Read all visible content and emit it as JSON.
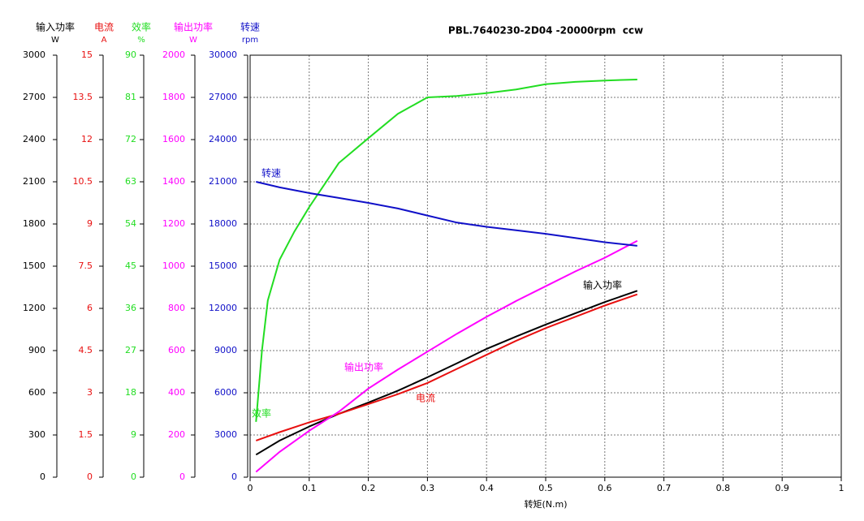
{
  "chart_data": {
    "type": "line",
    "title": "PBL.7640230-2D04 -20000rpm  ccw",
    "x_label": "转矩(N.m)",
    "xlim": [
      0,
      1
    ],
    "xticks": [
      0,
      0.1,
      0.2,
      0.3,
      0.4,
      0.5,
      0.6,
      0.7,
      0.8,
      0.9,
      1
    ],
    "grid": true,
    "axes": [
      {
        "name": "输入功率",
        "unit": "W",
        "color": "#000000",
        "ylim": [
          0,
          3000
        ],
        "yticks": [
          0,
          300,
          600,
          900,
          1200,
          1500,
          1800,
          2100,
          2400,
          2700,
          3000
        ]
      },
      {
        "name": "电流",
        "unit": "A",
        "color": "#e81010",
        "ylim": [
          0,
          15
        ],
        "yticks": [
          0,
          1.5,
          3,
          4.5,
          6,
          7.5,
          9,
          10.5,
          12,
          13.5,
          15
        ]
      },
      {
        "name": "效率",
        "unit": "%",
        "color": "#22dd22",
        "ylim": [
          0,
          90
        ],
        "yticks": [
          0,
          9,
          18,
          27,
          36,
          45,
          54,
          63,
          72,
          81,
          90
        ]
      },
      {
        "name": "输出功率",
        "unit": "W",
        "color": "#ff00ff",
        "ylim": [
          0,
          2000
        ],
        "yticks": [
          0,
          200,
          400,
          600,
          800,
          1000,
          1200,
          1400,
          1600,
          1800,
          2000
        ]
      },
      {
        "name": "转速",
        "unit": "rpm",
        "color": "#1010c8",
        "ylim": [
          0,
          30000
        ],
        "yticks": [
          0,
          3000,
          6000,
          9000,
          12000,
          15000,
          18000,
          21000,
          24000,
          27000,
          30000
        ]
      }
    ],
    "series": [
      {
        "name": "输入功率",
        "color": "#000000",
        "axis": 0,
        "x": [
          0.01,
          0.05,
          0.1,
          0.15,
          0.2,
          0.25,
          0.3,
          0.35,
          0.4,
          0.45,
          0.5,
          0.55,
          0.6,
          0.655
        ],
        "values": [
          160,
          260,
          360,
          450,
          530,
          615,
          710,
          810,
          912,
          1000,
          1085,
          1165,
          1245,
          1325
        ]
      },
      {
        "name": "电流",
        "color": "#e81010",
        "axis": 1,
        "x": [
          0.01,
          0.05,
          0.1,
          0.15,
          0.2,
          0.25,
          0.3,
          0.35,
          0.4,
          0.45,
          0.5,
          0.55,
          0.6,
          0.655
        ],
        "values": [
          1.3,
          1.6,
          1.95,
          2.25,
          2.6,
          2.95,
          3.35,
          3.85,
          4.35,
          4.85,
          5.3,
          5.7,
          6.1,
          6.5
        ]
      },
      {
        "name": "效率",
        "color": "#22dd22",
        "axis": 2,
        "x": [
          0.01,
          0.02,
          0.03,
          0.05,
          0.075,
          0.1,
          0.15,
          0.2,
          0.25,
          0.3,
          0.35,
          0.4,
          0.45,
          0.5,
          0.55,
          0.6,
          0.655
        ],
        "values": [
          11.8,
          27,
          37.7,
          46.4,
          52.4,
          57.6,
          67,
          72.3,
          77.5,
          81,
          81.3,
          81.9,
          82.7,
          83.8,
          84.3,
          84.6,
          84.8
        ]
      },
      {
        "name": "输出功率",
        "color": "#ff00ff",
        "axis": 3,
        "x": [
          0.01,
          0.05,
          0.1,
          0.15,
          0.2,
          0.25,
          0.3,
          0.35,
          0.4,
          0.45,
          0.5,
          0.55,
          0.6,
          0.655
        ],
        "values": [
          25,
          120,
          220,
          310,
          420,
          510,
          595,
          680,
          760,
          835,
          905,
          975,
          1040,
          1120
        ]
      },
      {
        "name": "转速",
        "color": "#1010c8",
        "axis": 4,
        "x": [
          0.01,
          0.05,
          0.1,
          0.15,
          0.2,
          0.25,
          0.3,
          0.35,
          0.4,
          0.45,
          0.5,
          0.55,
          0.6,
          0.655
        ],
        "values": [
          21000,
          20600,
          20200,
          19850,
          19500,
          19100,
          18600,
          18100,
          17800,
          17550,
          17300,
          17000,
          16700,
          16450
        ]
      }
    ]
  }
}
